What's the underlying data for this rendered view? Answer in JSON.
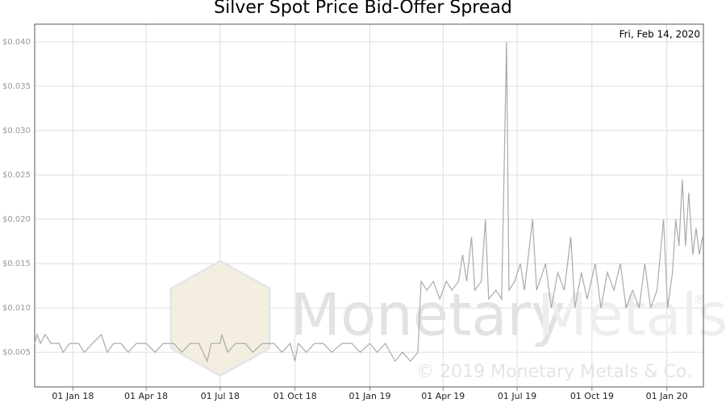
{
  "chart_data": {
    "type": "line",
    "title": "Silver Spot Price Bid-Offer Spread",
    "annotation": "Fri, Feb 14, 2020",
    "x": [
      "2017-11-15",
      "2017-11-18",
      "2017-11-22",
      "2017-11-28",
      "2017-12-05",
      "2017-12-15",
      "2017-12-20",
      "2017-12-28",
      "2018-01-08",
      "2018-01-15",
      "2018-01-25",
      "2018-02-05",
      "2018-02-12",
      "2018-02-20",
      "2018-03-01",
      "2018-03-10",
      "2018-03-20",
      "2018-04-01",
      "2018-04-12",
      "2018-04-22",
      "2018-05-05",
      "2018-05-15",
      "2018-05-25",
      "2018-06-05",
      "2018-06-15",
      "2018-06-20",
      "2018-07-01",
      "2018-07-03",
      "2018-07-10",
      "2018-07-20",
      "2018-08-01",
      "2018-08-10",
      "2018-08-22",
      "2018-09-05",
      "2018-09-15",
      "2018-09-25",
      "2018-10-01",
      "2018-10-05",
      "2018-10-15",
      "2018-10-25",
      "2018-11-05",
      "2018-11-15",
      "2018-11-28",
      "2018-12-10",
      "2018-12-20",
      "2019-01-01",
      "2019-01-10",
      "2019-01-20",
      "2019-02-01",
      "2019-02-10",
      "2019-02-20",
      "2019-03-01",
      "2019-03-05",
      "2019-03-12",
      "2019-03-20",
      "2019-03-28",
      "2019-04-05",
      "2019-04-12",
      "2019-04-20",
      "2019-04-25",
      "2019-04-30",
      "2019-05-06",
      "2019-05-10",
      "2019-05-18",
      "2019-05-23",
      "2019-05-27",
      "2019-06-05",
      "2019-06-12",
      "2019-06-18",
      "2019-06-21",
      "2019-06-28",
      "2019-07-05",
      "2019-07-10",
      "2019-07-20",
      "2019-07-25",
      "2019-08-05",
      "2019-08-12",
      "2019-08-20",
      "2019-08-28",
      "2019-09-05",
      "2019-09-10",
      "2019-09-18",
      "2019-09-25",
      "2019-10-05",
      "2019-10-12",
      "2019-10-20",
      "2019-10-28",
      "2019-11-05",
      "2019-11-12",
      "2019-11-20",
      "2019-11-28",
      "2019-12-05",
      "2019-12-12",
      "2019-12-20",
      "2019-12-28",
      "2020-01-02",
      "2020-01-08",
      "2020-01-12",
      "2020-01-16",
      "2020-01-20",
      "2020-01-24",
      "2020-01-28",
      "2020-02-02",
      "2020-02-06",
      "2020-02-10",
      "2020-02-14"
    ],
    "values": [
      0.006,
      0.007,
      0.006,
      0.007,
      0.006,
      0.006,
      0.005,
      0.006,
      0.006,
      0.005,
      0.006,
      0.007,
      0.005,
      0.006,
      0.006,
      0.005,
      0.006,
      0.006,
      0.005,
      0.006,
      0.006,
      0.005,
      0.006,
      0.006,
      0.004,
      0.006,
      0.006,
      0.007,
      0.005,
      0.006,
      0.006,
      0.005,
      0.006,
      0.006,
      0.005,
      0.006,
      0.004,
      0.006,
      0.005,
      0.006,
      0.006,
      0.005,
      0.006,
      0.006,
      0.005,
      0.006,
      0.005,
      0.006,
      0.004,
      0.005,
      0.004,
      0.005,
      0.013,
      0.012,
      0.013,
      0.011,
      0.013,
      0.012,
      0.013,
      0.016,
      0.013,
      0.018,
      0.012,
      0.013,
      0.02,
      0.011,
      0.012,
      0.011,
      0.04,
      0.012,
      0.013,
      0.015,
      0.012,
      0.02,
      0.012,
      0.015,
      0.01,
      0.014,
      0.012,
      0.018,
      0.01,
      0.014,
      0.011,
      0.015,
      0.01,
      0.014,
      0.012,
      0.015,
      0.01,
      0.012,
      0.01,
      0.015,
      0.01,
      0.012,
      0.02,
      0.01,
      0.014,
      0.02,
      0.017,
      0.0245,
      0.017,
      0.023,
      0.016,
      0.019,
      0.016,
      0.018
    ],
    "color": "#aaaaaa",
    "xlim": [
      "2017-11-15",
      "2020-02-15"
    ],
    "xticks": [
      {
        "value": "2018-01-01",
        "label": "01 Jan 18"
      },
      {
        "value": "2018-04-01",
        "label": "01 Apr 18"
      },
      {
        "value": "2018-07-01",
        "label": "01 Jul 18"
      },
      {
        "value": "2018-10-01",
        "label": "01 Oct 18"
      },
      {
        "value": "2019-01-01",
        "label": "01 Jan 19"
      },
      {
        "value": "2019-04-01",
        "label": "01 Apr 19"
      },
      {
        "value": "2019-07-01",
        "label": "01 Jul 19"
      },
      {
        "value": "2019-10-01",
        "label": "01 Oct 19"
      },
      {
        "value": "2020-01-01",
        "label": "01 Jan 20"
      }
    ],
    "ylim": [
      0.0011,
      0.042
    ],
    "yticks": [
      {
        "value": 0.005,
        "label": "$0.005"
      },
      {
        "value": 0.01,
        "label": "$0.010"
      },
      {
        "value": 0.015,
        "label": "$0.015"
      },
      {
        "value": 0.02,
        "label": "$0.020"
      },
      {
        "value": 0.025,
        "label": "$0.025"
      },
      {
        "value": 0.03,
        "label": "$0.030"
      },
      {
        "value": 0.035,
        "label": "$0.035"
      },
      {
        "value": 0.04,
        "label": "$0.040"
      }
    ],
    "grid": true
  },
  "watermark": {
    "brand": [
      "Monetary",
      "Metals"
    ],
    "registered": "®",
    "copyright": "© 2019 Monetary Metals & Co."
  }
}
